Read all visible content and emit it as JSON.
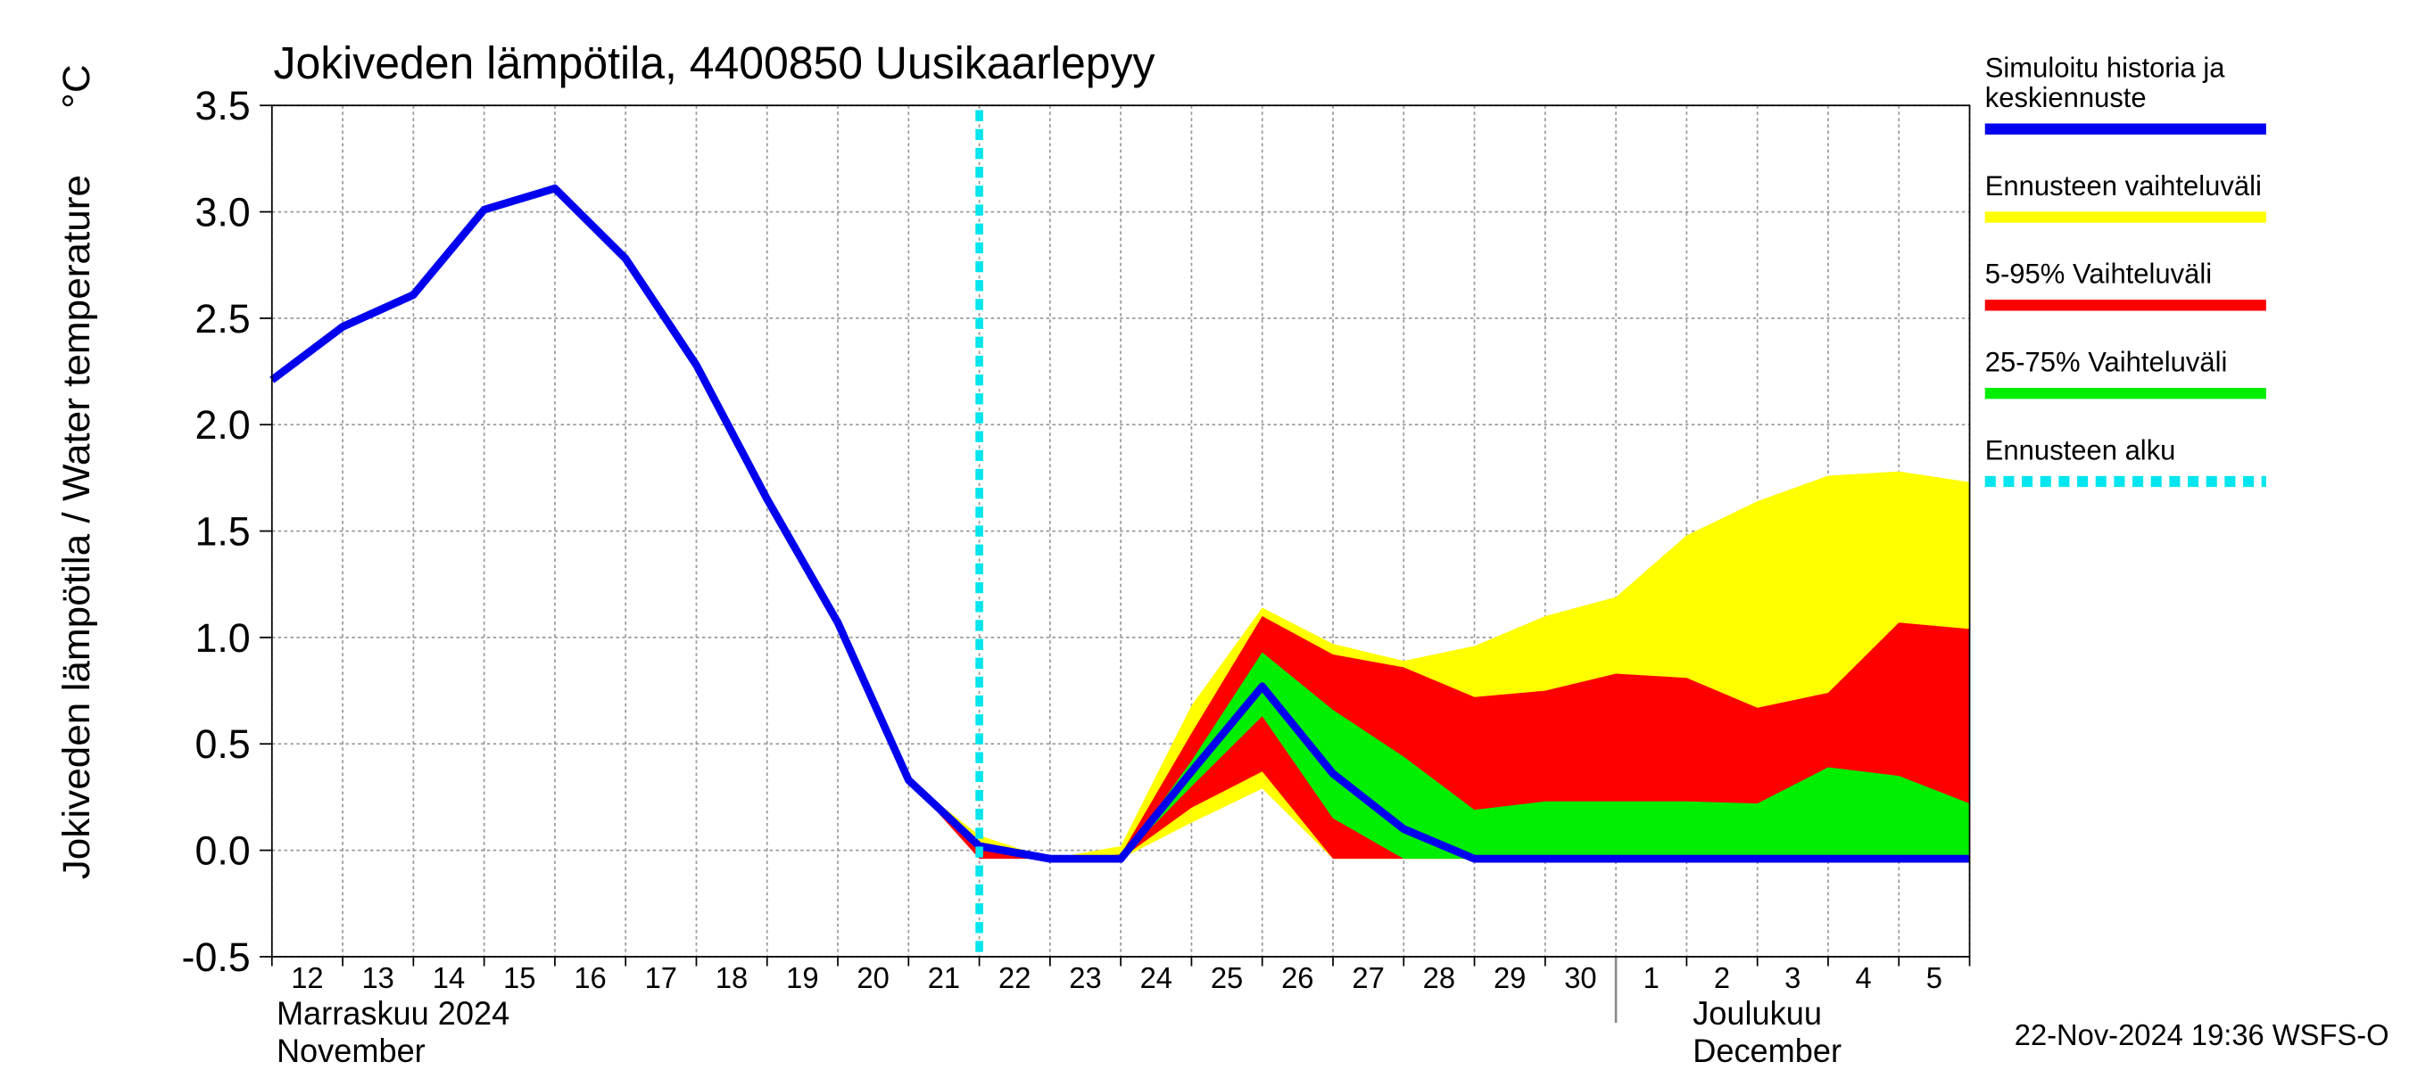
{
  "chart_data": {
    "type": "line-band",
    "title": "Jokiveden lämpötila, 4400850 Uusikaarlepyy",
    "y_label": "Jokiveden lämpötila / Water temperature",
    "y_unit": "°C",
    "footer": "22-Nov-2024 19:36 WSFS-O",
    "categories": [
      "12",
      "13",
      "14",
      "15",
      "16",
      "17",
      "18",
      "19",
      "20",
      "21",
      "22",
      "23",
      "24",
      "25",
      "26",
      "27",
      "28",
      "29",
      "30",
      "1",
      "2",
      "3",
      "4",
      "5",
      null
    ],
    "months": [
      {
        "label": "Marraskuu 2024",
        "label_en": "November",
        "start": "12"
      },
      {
        "label": "Joulukuu",
        "label_en": "December",
        "start": "1"
      }
    ],
    "ylim": [
      -0.5,
      3.5
    ],
    "yticks": [
      -0.5,
      {
        "value": 0,
        "label": "0.0"
      },
      0.5,
      {
        "value": 1,
        "label": "1.0"
      },
      1.5,
      {
        "value": 2,
        "label": "2.0"
      },
      2.5,
      {
        "value": 3,
        "label": "3.0"
      },
      3.5
    ],
    "grid": true,
    "series": [
      {
        "name": "Simuloitu historia ja keskiennuste",
        "kind": "line",
        "color": "#0000ee",
        "values": [
          2.21,
          2.46,
          2.61,
          3.01,
          3.11,
          2.78,
          2.28,
          1.65,
          1.07,
          0.33,
          0.02,
          -0.04,
          -0.04,
          0.37,
          0.77,
          0.36,
          0.1,
          -0.04,
          -0.04,
          -0.04,
          -0.04,
          -0.04,
          -0.04,
          -0.04,
          -0.04
        ]
      },
      {
        "name": "Ennusteen vaihteluväli",
        "kind": "band",
        "color": "#ffff00",
        "lower": [
          null,
          null,
          null,
          null,
          null,
          null,
          null,
          null,
          null,
          0.33,
          -0.02,
          -0.04,
          -0.04,
          0.13,
          0.29,
          -0.04,
          -0.04,
          -0.04,
          -0.04,
          -0.04,
          -0.04,
          -0.04,
          -0.04,
          -0.04,
          -0.04
        ],
        "upper": [
          null,
          null,
          null,
          null,
          null,
          null,
          null,
          null,
          null,
          0.33,
          0.07,
          -0.04,
          0.02,
          0.68,
          1.14,
          0.97,
          0.89,
          0.96,
          1.1,
          1.19,
          1.48,
          1.64,
          1.76,
          1.78,
          1.73
        ]
      },
      {
        "name": "5-95% Vaihteluväli",
        "kind": "band",
        "color": "#ff0000",
        "lower": [
          null,
          null,
          null,
          null,
          null,
          null,
          null,
          null,
          null,
          0.33,
          -0.04,
          -0.04,
          -0.04,
          0.2,
          0.37,
          -0.04,
          -0.04,
          -0.04,
          -0.04,
          -0.04,
          -0.04,
          -0.04,
          -0.04,
          -0.04,
          -0.04
        ],
        "upper": [
          null,
          null,
          null,
          null,
          null,
          null,
          null,
          null,
          null,
          0.33,
          0.03,
          -0.04,
          -0.02,
          0.55,
          1.1,
          0.92,
          0.86,
          0.72,
          0.75,
          0.83,
          0.81,
          0.67,
          0.74,
          1.07,
          1.04
        ]
      },
      {
        "name": "25-75% Vaihteluväli",
        "kind": "band",
        "color": "#00ee00",
        "lower": [
          null,
          null,
          null,
          null,
          null,
          null,
          null,
          null,
          null,
          0.33,
          0,
          -0.04,
          -0.04,
          0.3,
          0.63,
          0.15,
          -0.04,
          -0.04,
          -0.04,
          -0.04,
          -0.04,
          -0.04,
          -0.04,
          -0.04,
          -0.04
        ],
        "upper": [
          null,
          null,
          null,
          null,
          null,
          null,
          null,
          null,
          null,
          0.33,
          0.02,
          -0.04,
          -0.04,
          0.42,
          0.93,
          0.66,
          0.44,
          0.19,
          0.23,
          0.23,
          0.23,
          0.22,
          0.39,
          0.35,
          0.22
        ]
      }
    ],
    "forecast_start": {
      "name": "Ennusteen alku",
      "x": "22",
      "color": "#00e5ee"
    }
  }
}
